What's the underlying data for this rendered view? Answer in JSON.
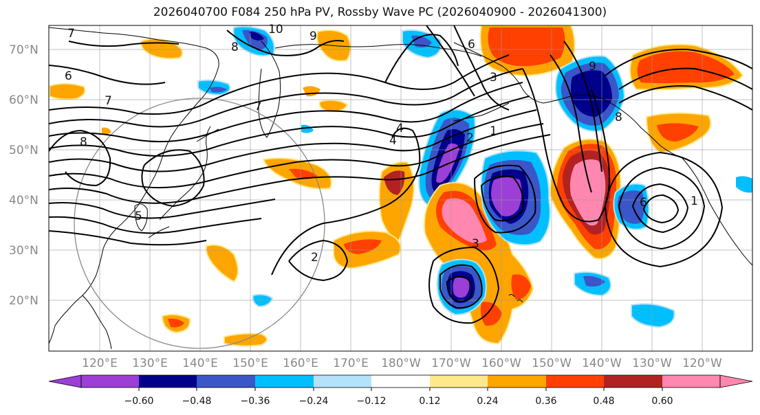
{
  "title": "2026040700 F084 250 hPa PV, Rossby Wave PC (2026040900 - 2026041300)",
  "lat_labels": [
    "70°N",
    "60°N",
    "50°N",
    "40°N",
    "30°N",
    "20°N"
  ],
  "lon_labels": [
    "120°E",
    "130°E",
    "140°E",
    "150°E",
    "160°E",
    "170°E",
    "180°W",
    "170°W",
    "160°W",
    "150°W",
    "140°W",
    "130°W",
    "120°W"
  ],
  "colorbar": {
    "colors": [
      "#9b3fd6",
      "#00008b",
      "#3a56c9",
      "#00bfff",
      "#b3e2fb",
      "#ffffff",
      "#fde98a",
      "#ffa500",
      "#ff4000",
      "#b22222",
      "#ff87b0"
    ],
    "tick_labels": [
      "−0.60",
      "−0.48",
      "−0.36",
      "−0.24",
      "−0.12",
      "0.12",
      "0.24",
      "0.36",
      "0.48",
      "0.60"
    ]
  },
  "contour_labels": [
    "10",
    "9",
    "8",
    "7",
    "7",
    "6",
    "6",
    "8",
    "7",
    "5",
    "4",
    "3",
    "2",
    "1",
    "2",
    "3",
    "4",
    "6",
    "8",
    "9",
    "1"
  ],
  "colors": {
    "gridline": "#999999",
    "coast": "#000000",
    "contour": "#000000",
    "circle": "#888888"
  }
}
